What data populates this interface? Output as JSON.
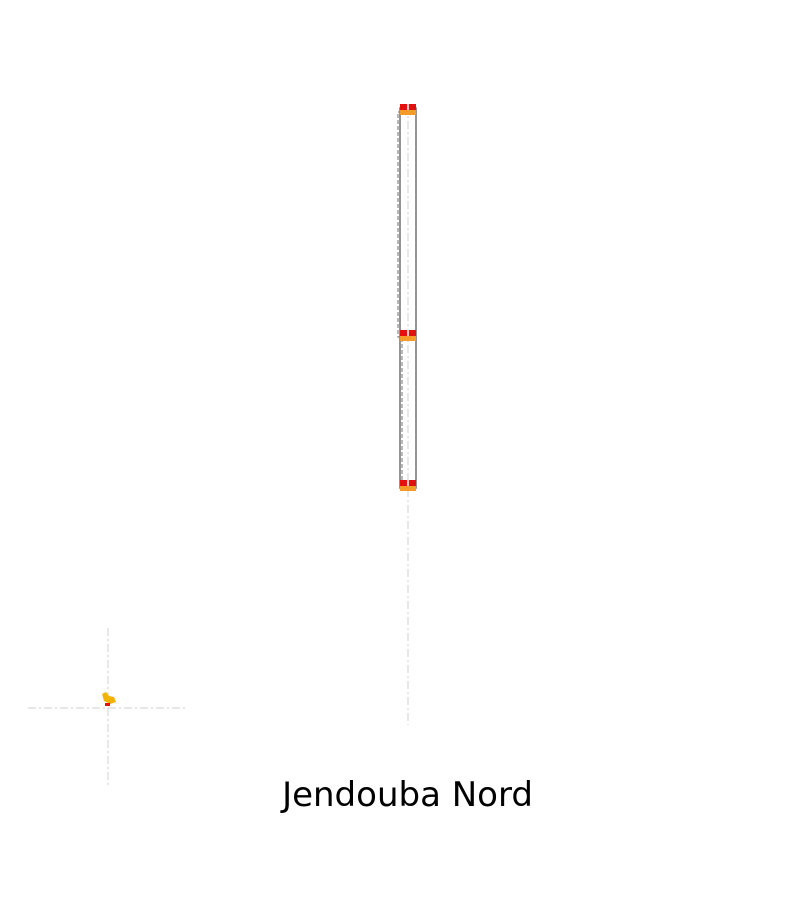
{
  "station": {
    "name": "Jendouba Nord"
  },
  "colors": {
    "background": "#ffffff",
    "track_outline": "#7a7a7a",
    "track_dashed": "#8a8a8a",
    "guide_line": "#cfcfcf",
    "signal_red": "#e31010",
    "signal_orange": "#f59b2a",
    "marker_yellow": "#f2b300"
  },
  "icons": {
    "north_marker": "duck-marker-icon",
    "signal": "signal-icon"
  }
}
